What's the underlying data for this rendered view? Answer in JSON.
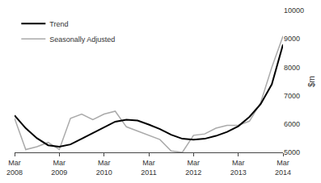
{
  "chart_data": {
    "type": "line",
    "ylabel": "$m",
    "categories": [
      "Mar\n2008",
      null,
      null,
      null,
      "Mar\n2009",
      null,
      null,
      null,
      "Mar\n2010",
      null,
      null,
      null,
      "Mar\n2011",
      null,
      null,
      null,
      "Mar\n2012",
      null,
      null,
      null,
      "Mar\n2013",
      null,
      null,
      null,
      "Mar\n2014"
    ],
    "series": [
      {
        "name": "Trend",
        "color": "#000000",
        "values": [
          6300,
          5850,
          5500,
          5250,
          5200,
          5280,
          5480,
          5680,
          5900,
          6080,
          6150,
          6120,
          5980,
          5820,
          5620,
          5480,
          5450,
          5480,
          5580,
          5720,
          5920,
          6250,
          6700,
          7400,
          8800
        ]
      },
      {
        "name": "Seasonally Adjusted",
        "color": "#aaaaaa",
        "values": [
          6200,
          5100,
          5200,
          5350,
          5100,
          6200,
          6350,
          6150,
          6350,
          6450,
          5900,
          5750,
          5600,
          5450,
          5050,
          5000,
          5600,
          5650,
          5850,
          5950,
          5950,
          6100,
          6750,
          8000,
          9100
        ]
      }
    ],
    "ylim": [
      5000,
      10000
    ],
    "yticks": [
      5000,
      6000,
      7000,
      8000,
      9000,
      10000
    ],
    "grid": false,
    "legend": "upper left"
  }
}
